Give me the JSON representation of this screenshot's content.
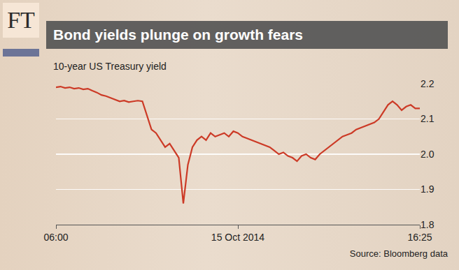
{
  "chart_data": {
    "type": "line",
    "logo": "FT",
    "title": "Bond yields plunge on growth fears",
    "subtitle": "10-year US Treasury yield",
    "source": "Source: Bloomberg data",
    "color": "#cc3a26",
    "grid": true,
    "categories": [
      "06:00",
      null,
      null,
      null,
      null,
      null,
      null,
      null,
      null,
      null,
      null,
      null,
      null,
      null,
      null,
      null,
      null,
      null,
      null,
      null,
      null,
      null,
      null,
      null,
      null,
      null,
      null,
      null,
      null,
      null,
      null,
      null,
      null,
      null,
      null,
      null,
      null,
      null,
      null,
      null,
      "15 Oct 2014",
      null,
      null,
      null,
      null,
      null,
      null,
      null,
      null,
      null,
      null,
      null,
      null,
      null,
      null,
      null,
      null,
      null,
      null,
      null,
      null,
      null,
      null,
      null,
      null,
      null,
      null,
      null,
      null,
      null,
      null,
      null,
      null,
      null,
      null,
      null,
      null,
      null,
      null,
      null,
      "16:25"
    ],
    "values": [
      2.19,
      2.192,
      2.188,
      2.19,
      2.186,
      2.188,
      2.184,
      2.186,
      2.18,
      2.175,
      2.168,
      2.165,
      2.16,
      2.155,
      2.15,
      2.152,
      2.148,
      2.15,
      2.152,
      2.15,
      2.11,
      2.07,
      2.06,
      2.04,
      2.02,
      2.03,
      2.01,
      1.99,
      1.86,
      1.97,
      2.02,
      2.04,
      2.05,
      2.04,
      2.06,
      2.05,
      2.055,
      2.06,
      2.05,
      2.065,
      2.06,
      2.05,
      2.045,
      2.04,
      2.035,
      2.03,
      2.025,
      2.02,
      2.01,
      2.0,
      2.005,
      1.995,
      1.99,
      1.98,
      1.995,
      2.0,
      1.99,
      1.985,
      2.0,
      2.01,
      2.02,
      2.03,
      2.04,
      2.05,
      2.055,
      2.06,
      2.07,
      2.075,
      2.08,
      2.085,
      2.09,
      2.1,
      2.12,
      2.14,
      2.15,
      2.14,
      2.125,
      2.135,
      2.14,
      2.13,
      2.13
    ],
    "ylim": [
      1.8,
      2.2
    ],
    "yticks": [
      1.8,
      1.9,
      {
        "value": 2,
        "label": "2.0"
      },
      2.1,
      2.2
    ]
  }
}
